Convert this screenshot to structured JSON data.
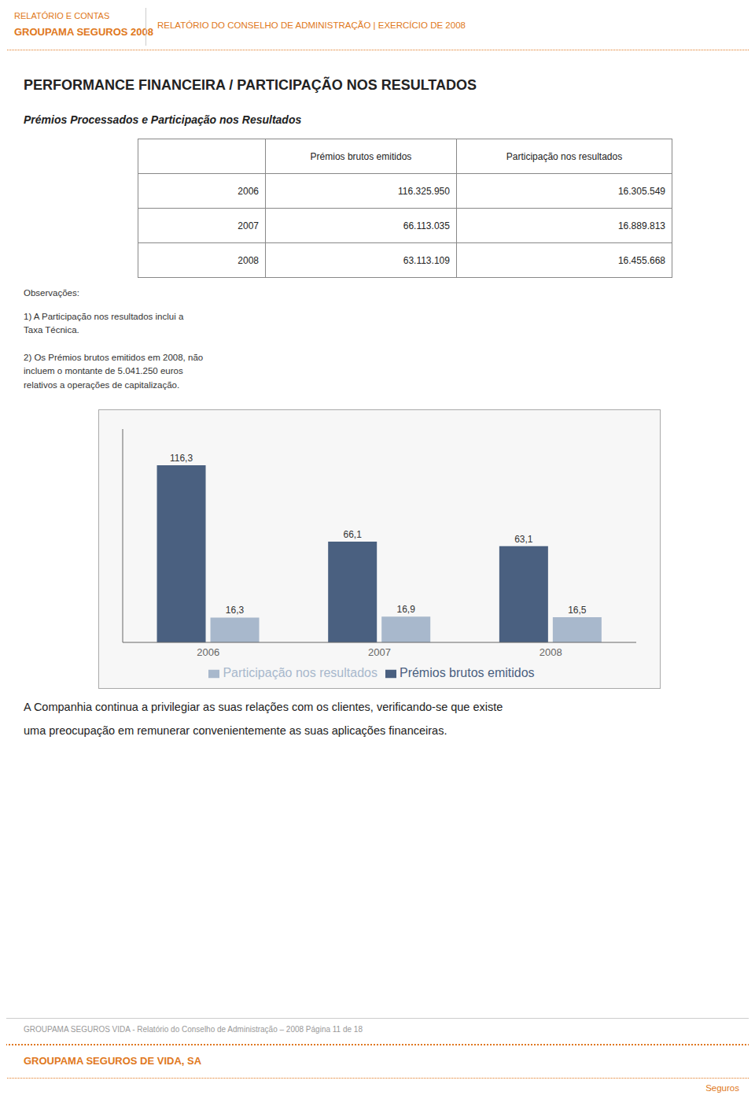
{
  "chart_data": {
    "type": "bar",
    "title": "PERFORMANCE FINANCEIRA / PARTICIPAÇÃO NOS RESULTADOS",
    "subtitle": "Prémios Processados e Participação nos Resultados",
    "categories": [
      "2006",
      "2007",
      "2008"
    ],
    "series": [
      {
        "name": "Prémios brutos emitidos",
        "color": "#4a6080",
        "values": [
          116.3,
          66.1,
          63.1
        ],
        "value_labels": [
          "116,3",
          "66,1",
          "63,1"
        ]
      },
      {
        "name": "Participação nos resultados",
        "color": "#a8b8cc",
        "values": [
          16.3,
          16.9,
          16.5
        ],
        "value_labels": [
          "16,3",
          "16,9",
          "16,5"
        ]
      }
    ],
    "ylim": [
      0,
      140
    ],
    "tick_labels": "x",
    "grid": false,
    "legend": "bottom",
    "data_labels": true,
    "table": {
      "columns": [
        "Prémios brutos emitidos",
        "Participação nos resultados"
      ],
      "rows": [
        [
          "2006",
          "116.325.950",
          "16.305.549"
        ],
        [
          "2007",
          "66.113.035",
          "16.889.813"
        ],
        [
          "2008",
          "63.113.109",
          "16.455.668"
        ]
      ]
    },
    "annotations": [
      "RELATÓRIO E CONTAS",
      "GROUPAMA SEGUROS 2008",
      "RELATÓRIO DO CONSELHO DE ADMINISTRAÇÃO  |  EXERCÍCIO DE 2008",
      "Observações:",
      "1) A Participação nos resultados inclui a\nTaxa Técnica.",
      "2) Os Prémios brutos emitidos em 2008, não\nincluem o montante de 5.041.250 euros\nrelativos a operações de capitalização.",
      "A Companhia continua a privilegiar as suas relações com os clientes, verificando-se que existe",
      "uma preocupação em remunerar convenientemente as suas aplicações financeiras.",
      "GROUPAMA SEGUROS VIDA - Relatório do Conselho de Administração – 2008   Página 11 de 18",
      "GROUPAMA SEGUROS DE VIDA, SA",
      "Seguros"
    ]
  }
}
